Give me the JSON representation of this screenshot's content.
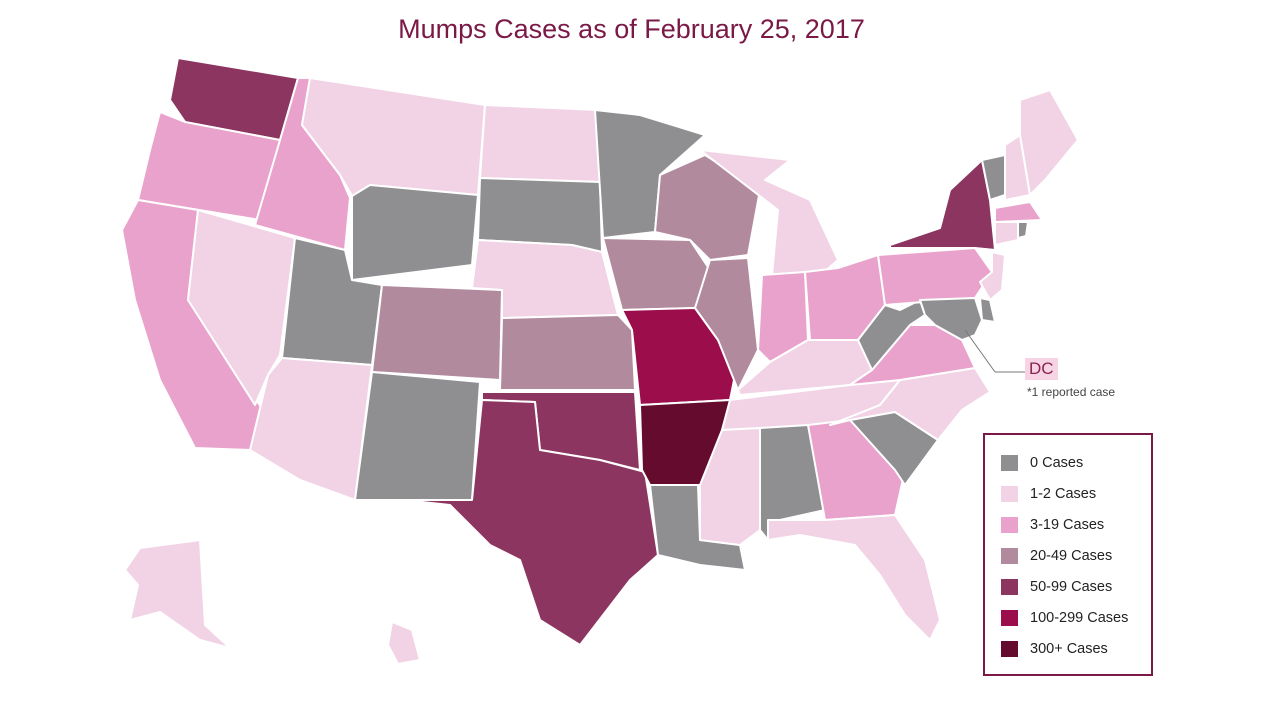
{
  "title": "Mumps Cases as of February 25, 2017",
  "dc": {
    "label": "DC",
    "note": "*1 reported case"
  },
  "legend": [
    {
      "label": "0 Cases",
      "color": "#8f8f91"
    },
    {
      "label": "1-2 Cases",
      "color": "#f1d3e5"
    },
    {
      "label": "3-19 Cases",
      "color": "#e9a2cb"
    },
    {
      "label": "20-49 Cases",
      "color": "#b18a9d"
    },
    {
      "label": "50-99 Cases",
      "color": "#8c3561"
    },
    {
      "label": "100-299 Cases",
      "color": "#9c0d4c"
    },
    {
      "label": "300+ Cases",
      "color": "#650b2e"
    }
  ],
  "states": [
    {
      "id": "WA",
      "cat": 4
    },
    {
      "id": "OR",
      "cat": 2
    },
    {
      "id": "CA",
      "cat": 2
    },
    {
      "id": "ID",
      "cat": 2
    },
    {
      "id": "NV",
      "cat": 1
    },
    {
      "id": "MT",
      "cat": 1
    },
    {
      "id": "WY",
      "cat": 0
    },
    {
      "id": "UT",
      "cat": 0
    },
    {
      "id": "AZ",
      "cat": 1
    },
    {
      "id": "CO",
      "cat": 3
    },
    {
      "id": "NM",
      "cat": 0
    },
    {
      "id": "ND",
      "cat": 1
    },
    {
      "id": "SD",
      "cat": 0
    },
    {
      "id": "NE",
      "cat": 1
    },
    {
      "id": "KS",
      "cat": 3
    },
    {
      "id": "OK",
      "cat": 4
    },
    {
      "id": "TX",
      "cat": 4
    },
    {
      "id": "MN",
      "cat": 0
    },
    {
      "id": "IA",
      "cat": 3
    },
    {
      "id": "MO",
      "cat": 5
    },
    {
      "id": "AR",
      "cat": 6
    },
    {
      "id": "LA",
      "cat": 0
    },
    {
      "id": "WI",
      "cat": 3
    },
    {
      "id": "IL",
      "cat": 3
    },
    {
      "id": "MI",
      "cat": 1
    },
    {
      "id": "IN",
      "cat": 2
    },
    {
      "id": "OH",
      "cat": 2
    },
    {
      "id": "KY",
      "cat": 1
    },
    {
      "id": "TN",
      "cat": 1
    },
    {
      "id": "MS",
      "cat": 1
    },
    {
      "id": "AL",
      "cat": 0
    },
    {
      "id": "GA",
      "cat": 2
    },
    {
      "id": "FL",
      "cat": 1
    },
    {
      "id": "SC",
      "cat": 0
    },
    {
      "id": "NC",
      "cat": 1
    },
    {
      "id": "VA",
      "cat": 2
    },
    {
      "id": "WV",
      "cat": 0
    },
    {
      "id": "PA",
      "cat": 2
    },
    {
      "id": "NY",
      "cat": 4
    },
    {
      "id": "VT",
      "cat": 0
    },
    {
      "id": "NH",
      "cat": 1
    },
    {
      "id": "ME",
      "cat": 1
    },
    {
      "id": "MA",
      "cat": 2
    },
    {
      "id": "CT",
      "cat": 1
    },
    {
      "id": "RI",
      "cat": 0
    },
    {
      "id": "NJ",
      "cat": 1
    },
    {
      "id": "DE",
      "cat": 0
    },
    {
      "id": "MD",
      "cat": 0
    },
    {
      "id": "AK",
      "cat": 1
    },
    {
      "id": "HI",
      "cat": 1
    }
  ]
}
